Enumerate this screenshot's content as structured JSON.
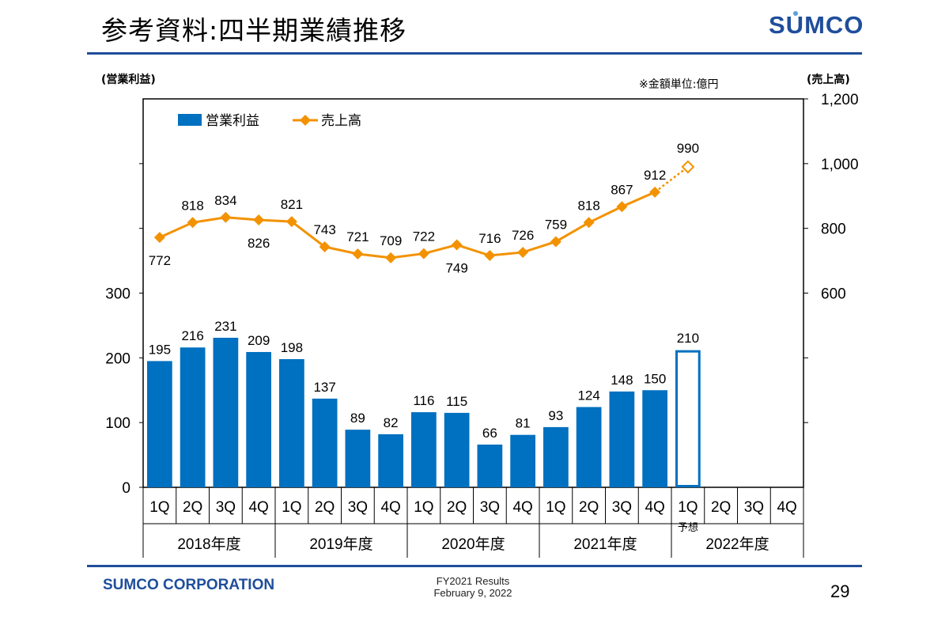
{
  "slide": {
    "title": "参考資料:四半期業績推移",
    "logo": "SUMCO",
    "left_axis_title": "(営業利益)",
    "right_axis_title": "(売上高)",
    "unit_note": "※金額単位:億円",
    "footer": {
      "company": "SUMCO CORPORATION",
      "line1": "FY2021 Results",
      "line2": "February 9, 2022",
      "page": "29"
    }
  },
  "chart_data": {
    "type": "bar",
    "categories": [
      "1Q",
      "2Q",
      "3Q",
      "4Q",
      "1Q",
      "2Q",
      "3Q",
      "4Q",
      "1Q",
      "2Q",
      "3Q",
      "4Q",
      "1Q",
      "2Q",
      "3Q",
      "4Q",
      "1Q",
      "2Q",
      "3Q",
      "4Q"
    ],
    "years": [
      {
        "label": "2018年度",
        "start": 0,
        "count": 4
      },
      {
        "label": "2019年度",
        "start": 4,
        "count": 4
      },
      {
        "label": "2020年度",
        "start": 8,
        "count": 4
      },
      {
        "label": "2021年度",
        "start": 12,
        "count": 4
      },
      {
        "label": "2022年度",
        "start": 16,
        "count": 4
      }
    ],
    "forecast_note": "予想",
    "series": [
      {
        "name": "営業利益",
        "type": "bar",
        "axis": "left",
        "color": "#0070c0",
        "values": [
          195,
          216,
          231,
          209,
          198,
          137,
          89,
          82,
          116,
          115,
          66,
          81,
          93,
          124,
          148,
          150,
          null,
          null,
          null,
          null
        ],
        "forecast": {
          "index": 16,
          "value": 210
        }
      },
      {
        "name": "売上高",
        "type": "line",
        "axis": "right",
        "color": "#f39200",
        "values": [
          772,
          818,
          834,
          826,
          821,
          743,
          721,
          709,
          722,
          749,
          716,
          726,
          759,
          818,
          867,
          912,
          null,
          null,
          null,
          null
        ],
        "forecast": {
          "index": 16,
          "value": 990
        }
      }
    ],
    "left_axis": {
      "ylim": [
        0,
        600
      ],
      "ticks": [
        0,
        100,
        200,
        300
      ],
      "tick_labels": [
        "0",
        "100",
        "200",
        "300"
      ]
    },
    "right_axis": {
      "ylim": [
        0,
        1200
      ],
      "ticks": [
        600,
        800,
        1000,
        1200
      ],
      "tick_labels": [
        "600",
        "800",
        "1,000",
        "1,200"
      ]
    },
    "legend": [
      {
        "label": "営業利益",
        "kind": "bar"
      },
      {
        "label": "売上高",
        "kind": "line"
      }
    ],
    "legend_position": "top-left"
  }
}
